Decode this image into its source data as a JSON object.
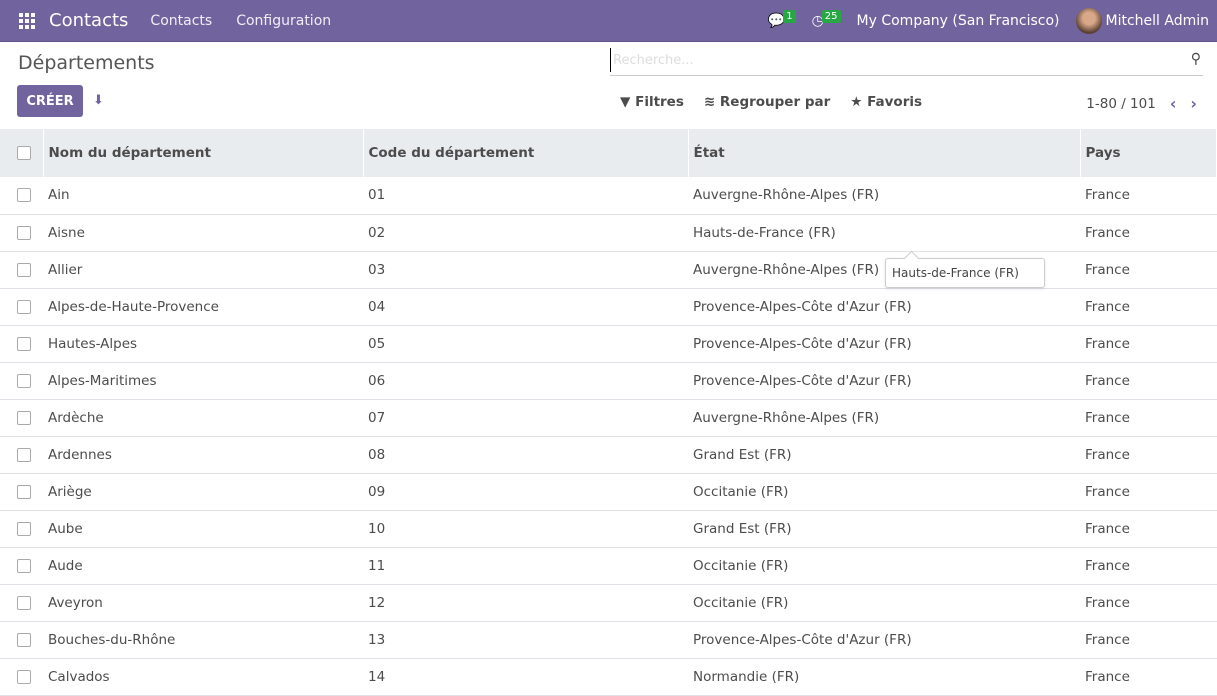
{
  "nav": {
    "app": "Contacts",
    "menus": [
      "Contacts",
      "Configuration"
    ],
    "messages_count": "1",
    "activities_count": "25",
    "company": "My Company (San Francisco)",
    "user": "Mitchell Admin",
    "accent": "#71639e"
  },
  "page": {
    "title": "Départements",
    "create": "CRÉER",
    "search_placeholder": "Recherche...",
    "filters": "Filtres",
    "group_by": "Regrouper par",
    "favorites": "Favoris",
    "pager": "1-80 / 101"
  },
  "table": {
    "headers": [
      "Nom du département",
      "Code du département",
      "État",
      "Pays"
    ],
    "rows": [
      [
        "Ain",
        "01",
        "Auvergne-Rhône-Alpes (FR)",
        "France"
      ],
      [
        "Aisne",
        "02",
        "Hauts-de-France (FR)",
        "France"
      ],
      [
        "Allier",
        "03",
        "Auvergne-Rhône-Alpes (FR)",
        "France"
      ],
      [
        "Alpes-de-Haute-Provence",
        "04",
        "Provence-Alpes-Côte d'Azur (FR)",
        "France"
      ],
      [
        "Hautes-Alpes",
        "05",
        "Provence-Alpes-Côte d'Azur (FR)",
        "France"
      ],
      [
        "Alpes-Maritimes",
        "06",
        "Provence-Alpes-Côte d'Azur (FR)",
        "France"
      ],
      [
        "Ardèche",
        "07",
        "Auvergne-Rhône-Alpes (FR)",
        "France"
      ],
      [
        "Ardennes",
        "08",
        "Grand Est (FR)",
        "France"
      ],
      [
        "Ariège",
        "09",
        "Occitanie (FR)",
        "France"
      ],
      [
        "Aube",
        "10",
        "Grand Est (FR)",
        "France"
      ],
      [
        "Aude",
        "11",
        "Occitanie (FR)",
        "France"
      ],
      [
        "Aveyron",
        "12",
        "Occitanie (FR)",
        "France"
      ],
      [
        "Bouches-du-Rhône",
        "13",
        "Provence-Alpes-Côte d'Azur (FR)",
        "France"
      ],
      [
        "Calvados",
        "14",
        "Normandie (FR)",
        "France"
      ]
    ]
  },
  "tooltip": "Hauts-de-France (FR)"
}
